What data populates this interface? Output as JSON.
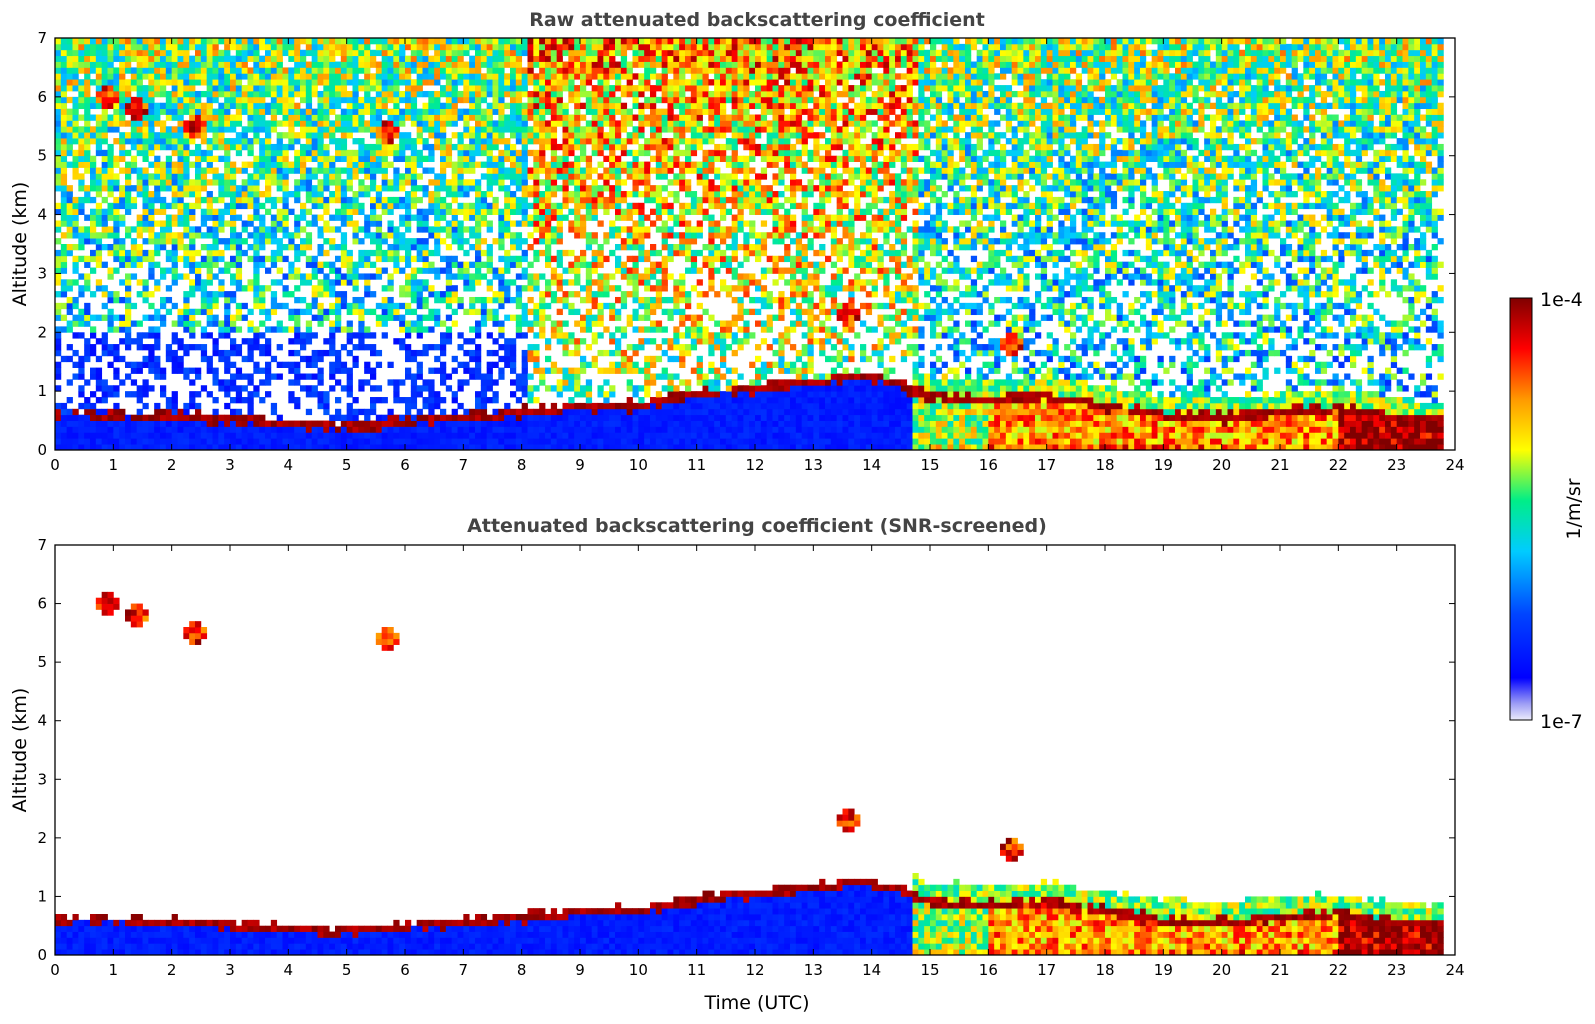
{
  "chart_data": [
    {
      "type": "heatmap",
      "title": "Raw attenuated backscattering coefficient",
      "xlabel": "",
      "ylabel": "Altitude (km)",
      "xlim": [
        0,
        24
      ],
      "ylim": [
        0,
        7
      ],
      "x_ticks": [
        0,
        1,
        2,
        3,
        4,
        5,
        6,
        7,
        8,
        9,
        10,
        11,
        12,
        13,
        14,
        15,
        16,
        17,
        18,
        19,
        20,
        21,
        22,
        23,
        24
      ],
      "y_ticks": [
        0,
        1,
        2,
        3,
        4,
        5,
        6,
        7
      ],
      "features": {
        "boundary_layer_top_km": [
          {
            "t": 1.0,
            "alt": 0.6
          },
          {
            "t": 2.7,
            "alt": 0.55
          },
          {
            "t": 4.0,
            "alt": 0.45
          },
          {
            "t": 5.0,
            "alt": 0.4
          },
          {
            "t": 8.1,
            "alt": 0.65
          },
          {
            "t": 9.0,
            "alt": 0.75
          },
          {
            "t": 10.0,
            "alt": 0.75
          },
          {
            "t": 11.0,
            "alt": 0.95
          },
          {
            "t": 12.0,
            "alt": 1.05
          },
          {
            "t": 13.0,
            "alt": 1.15
          },
          {
            "t": 13.7,
            "alt": 1.25
          },
          {
            "t": 14.4,
            "alt": 1.15
          },
          {
            "t": 15.0,
            "alt": 0.9
          },
          {
            "t": 16.0,
            "alt": 0.85
          },
          {
            "t": 17.0,
            "alt": 0.9
          },
          {
            "t": 18.0,
            "alt": 0.75
          },
          {
            "t": 19.0,
            "alt": 0.6
          },
          {
            "t": 20.0,
            "alt": 0.55
          },
          {
            "t": 21.0,
            "alt": 0.65
          },
          {
            "t": 22.0,
            "alt": 0.7
          },
          {
            "t": 23.0,
            "alt": 0.55
          },
          {
            "t": 23.8,
            "alt": 0.5
          }
        ],
        "elevated_clouds_km": [
          {
            "t": 0.9,
            "alt": 6.0
          },
          {
            "t": 1.4,
            "alt": 5.8
          },
          {
            "t": 2.4,
            "alt": 5.5
          },
          {
            "t": 5.7,
            "alt": 5.4
          },
          {
            "t": 13.6,
            "alt": 2.3
          },
          {
            "t": 16.4,
            "alt": 1.8
          }
        ]
      }
    },
    {
      "type": "heatmap",
      "title": "Attenuated backscattering coefficient (SNR-screened)",
      "xlabel": "Time (UTC)",
      "ylabel": "Altitude (km)",
      "xlim": [
        0,
        24
      ],
      "ylim": [
        0,
        7
      ],
      "x_ticks": [
        0,
        1,
        2,
        3,
        4,
        5,
        6,
        7,
        8,
        9,
        10,
        11,
        12,
        13,
        14,
        15,
        16,
        17,
        18,
        19,
        20,
        21,
        22,
        23,
        24
      ],
      "y_ticks": [
        0,
        1,
        2,
        3,
        4,
        5,
        6,
        7
      ]
    }
  ],
  "colorbar": {
    "max_label": "1e-4",
    "min_label": "1e-7",
    "label": "1/m/sr",
    "scale": "log",
    "range": [
      1e-07,
      0.0001
    ],
    "colors": [
      "#e8e8f8",
      "#0000ff",
      "#00ccff",
      "#00ee88",
      "#ffff00",
      "#ff8800",
      "#ff0000",
      "#800000"
    ]
  }
}
